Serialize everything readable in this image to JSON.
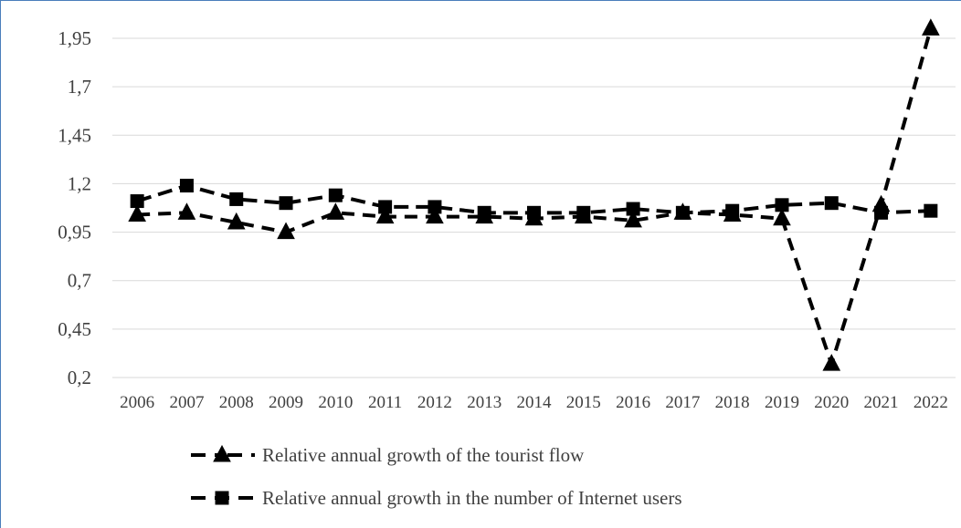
{
  "chart_data": {
    "type": "line",
    "categories": [
      "2006",
      "2007",
      "2008",
      "2009",
      "2010",
      "2011",
      "2012",
      "2013",
      "2014",
      "2015",
      "2016",
      "2017",
      "2018",
      "2019",
      "2020",
      "2021",
      "2022"
    ],
    "y_ticks": [
      "1,95",
      "1,7",
      "1,45",
      "1,2",
      "0,95",
      "0,7",
      "0,45",
      "0,2"
    ],
    "ylim": [
      0.2,
      1.95
    ],
    "grid": true,
    "legend_position": "bottom",
    "series": [
      {
        "name": "Relative annual growth of the tourist flow",
        "marker": "triangle",
        "color": "#000000",
        "values": [
          1.04,
          1.05,
          1.0,
          0.95,
          1.05,
          1.03,
          1.03,
          1.03,
          1.02,
          1.03,
          1.01,
          1.05,
          1.04,
          1.02,
          0.27,
          1.09,
          2.0
        ]
      },
      {
        "name": "Relative annual growth in the number of Internet users",
        "marker": "square",
        "color": "#000000",
        "values": [
          1.11,
          1.19,
          1.12,
          1.1,
          1.14,
          1.08,
          1.08,
          1.05,
          1.05,
          1.05,
          1.07,
          1.05,
          1.06,
          1.09,
          1.1,
          1.05,
          1.06
        ]
      }
    ]
  }
}
